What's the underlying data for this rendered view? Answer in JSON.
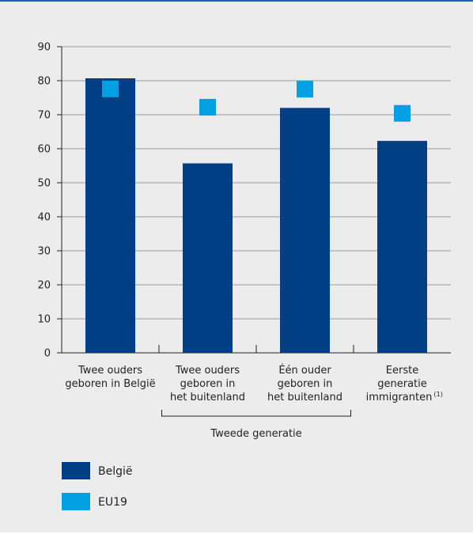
{
  "chart_data": {
    "type": "bar",
    "title": "",
    "xlabel": "",
    "ylabel": "",
    "ylim": [
      0,
      90
    ],
    "yticks": [
      0,
      10,
      20,
      30,
      40,
      50,
      60,
      70,
      80,
      90
    ],
    "grid": true,
    "categories": [
      [
        "Twee ouders",
        "geboren in België"
      ],
      [
        "Twee ouders",
        "geboren in",
        "het buitenland"
      ],
      [
        "Één ouder",
        "geboren in",
        "het buitenland"
      ],
      [
        "Eerste",
        "generatie",
        "immigranten"
      ]
    ],
    "footnote_marker": "(1)",
    "group_label": "Tweede generatie",
    "series": [
      {
        "name": "België",
        "type": "bar",
        "color": "#003f83",
        "values": [
          80.7,
          55.7,
          72.0,
          62.3
        ]
      },
      {
        "name": "EU19",
        "type": "marker",
        "color": "#00a0e3",
        "values": [
          77.6,
          72.2,
          77.5,
          70.4
        ]
      }
    ],
    "legend_position": "bottom-left"
  }
}
